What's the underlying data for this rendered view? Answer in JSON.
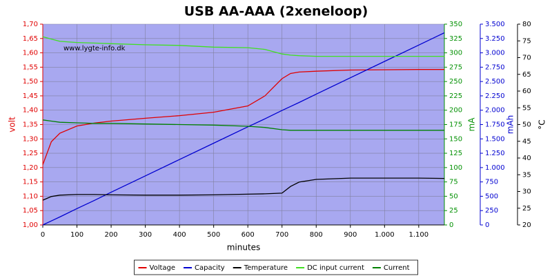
{
  "chart_data": {
    "type": "line",
    "title": "USB AA-AAA (2xeneloop)",
    "annotation": "www.lygte-info.dk",
    "xlabel": "minutes",
    "ylabel": "volt",
    "y2label": "mA",
    "y3label": "mAh",
    "y4label": "°C",
    "x": [
      0,
      25,
      50,
      100,
      150,
      200,
      300,
      400,
      500,
      600,
      650,
      700,
      725,
      750,
      800,
      900,
      1000,
      1100,
      1175
    ],
    "xlim": [
      0,
      1175
    ],
    "xticks": [
      0,
      100,
      200,
      300,
      400,
      500,
      600,
      700,
      800,
      900,
      {
        "value": 1000,
        "label": "1.000"
      },
      {
        "value": 1100,
        "label": "1.100"
      }
    ],
    "ylim": [
      1.0,
      1.7
    ],
    "yticks": [
      {
        "value": 1.0,
        "label": "1,00"
      },
      {
        "value": 1.05,
        "label": "1,05"
      },
      {
        "value": 1.1,
        "label": "1,10"
      },
      {
        "value": 1.15,
        "label": "1,15"
      },
      {
        "value": 1.2,
        "label": "1,20"
      },
      {
        "value": 1.25,
        "label": "1,25"
      },
      {
        "value": 1.3,
        "label": "1,30"
      },
      {
        "value": 1.35,
        "label": "1,35"
      },
      {
        "value": 1.4,
        "label": "1,40"
      },
      {
        "value": 1.45,
        "label": "1,45"
      },
      {
        "value": 1.5,
        "label": "1,50"
      },
      {
        "value": 1.55,
        "label": "1,55"
      },
      {
        "value": 1.6,
        "label": "1,60"
      },
      {
        "value": 1.65,
        "label": "1,65"
      },
      {
        "value": 1.7,
        "label": "1,70"
      }
    ],
    "y2lim": [
      0,
      350
    ],
    "y2ticks": [
      0,
      25,
      50,
      75,
      100,
      125,
      150,
      175,
      200,
      225,
      250,
      275,
      300,
      325,
      350
    ],
    "y3lim": [
      0,
      3500
    ],
    "y3ticks": [
      0,
      250,
      500,
      750,
      {
        "value": 1000,
        "label": "1.000"
      },
      {
        "value": 1250,
        "label": "1.250"
      },
      {
        "value": 1500,
        "label": "1.500"
      },
      {
        "value": 1750,
        "label": "1.750"
      },
      {
        "value": 2000,
        "label": "2.000"
      },
      {
        "value": 2250,
        "label": "2.250"
      },
      {
        "value": 2500,
        "label": "2.500"
      },
      {
        "value": 2750,
        "label": "2.750"
      },
      {
        "value": 3000,
        "label": "3.000"
      },
      {
        "value": 3250,
        "label": "3.250"
      },
      {
        "value": 3500,
        "label": "3.500"
      }
    ],
    "y4lim": [
      20,
      80
    ],
    "y4ticks": [
      20,
      25,
      30,
      35,
      40,
      45,
      50,
      55,
      60,
      65,
      70,
      75,
      80
    ],
    "grid": true,
    "legend": "bottom",
    "series": [
      {
        "name": "Voltage",
        "color": "#e00000",
        "axis": "y",
        "values": [
          1.21,
          1.29,
          1.32,
          1.345,
          1.355,
          1.362,
          1.372,
          1.381,
          1.393,
          1.415,
          1.45,
          1.51,
          1.528,
          1.533,
          1.536,
          1.54,
          1.541,
          1.542,
          1.542
        ]
      },
      {
        "name": "Capacity",
        "color": "#0000d0",
        "axis": "y3",
        "values": [
          0,
          70,
          140,
          285,
          425,
          570,
          855,
          1140,
          1425,
          1710,
          1850,
          1995,
          2065,
          2135,
          2280,
          2565,
          2850,
          3135,
          3350
        ]
      },
      {
        "name": "Temperature",
        "color": "#000000",
        "axis": "y4",
        "values": [
          27.4,
          28.5,
          28.9,
          29.1,
          29.1,
          29.0,
          28.9,
          28.9,
          29.0,
          29.2,
          29.3,
          29.5,
          31.5,
          32.8,
          33.6,
          34.0,
          34.0,
          34.0,
          33.9
        ]
      },
      {
        "name": "DC input current",
        "color": "#40e020",
        "axis": "y2",
        "values": [
          328,
          324,
          320,
          318,
          317,
          316,
          314,
          313,
          310,
          309,
          306,
          298,
          296,
          295,
          294,
          294,
          294,
          294,
          294
        ]
      },
      {
        "name": "Current",
        "color": "#008000",
        "axis": "y2",
        "values": [
          183,
          181,
          179,
          178,
          177,
          177,
          176,
          175,
          174,
          172,
          170,
          166,
          165,
          165,
          165,
          165,
          165,
          165,
          165
        ]
      }
    ]
  }
}
